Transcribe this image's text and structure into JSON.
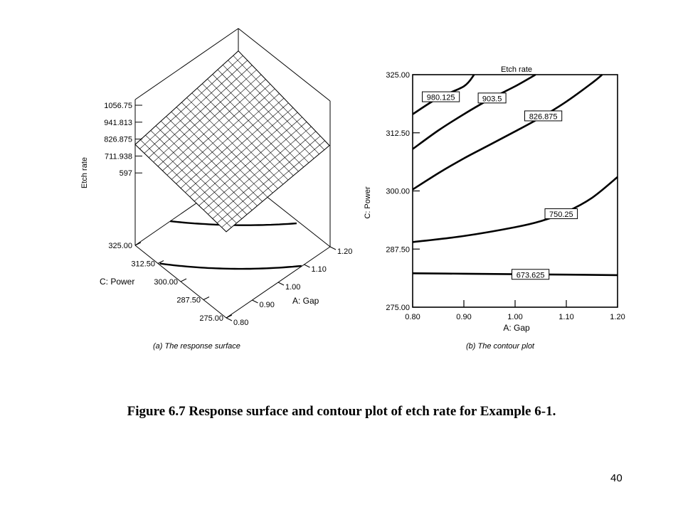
{
  "caption": "Figure 6.7  Response surface and contour plot of etch rate for Example 6-1.",
  "page_number": "40",
  "chart_data": [
    {
      "type": "surface",
      "sublabel": "(a) The response surface",
      "zlabel": "Etch rate",
      "z_ticks": [
        "1056.75",
        "941.813",
        "826.875",
        "711.938",
        "597"
      ],
      "z_range": [
        597,
        1056.75
      ],
      "xlabel": "A: Gap",
      "x_ticks": [
        "0.80",
        "0.90",
        "1.00",
        "1.10",
        "1.20"
      ],
      "x_range": [
        0.8,
        1.2
      ],
      "ylabel": "C: Power",
      "y_ticks": [
        "325.00",
        "312.50",
        "300.00",
        "287.50",
        "275.00"
      ],
      "y_range": [
        275,
        325
      ],
      "grid": true
    },
    {
      "type": "contour",
      "title": "Etch rate",
      "sublabel": "(b) The contour plot",
      "xlabel": "A: Gap",
      "ylabel": "C: Power",
      "x_ticks": [
        "0.80",
        "0.90",
        "1.00",
        "1.10",
        "1.20"
      ],
      "y_ticks": [
        "325.00",
        "312.50",
        "300.00",
        "287.50",
        "275.00"
      ],
      "xlim": [
        0.8,
        1.2
      ],
      "ylim": [
        275,
        325
      ],
      "contours": [
        {
          "level": "980.125",
          "points": [
            [
              0.8,
              316.5
            ],
            [
              0.85,
              320.0
            ],
            [
              0.9,
              322.5
            ],
            [
              0.92,
              325.0
            ]
          ]
        },
        {
          "level": "903.5",
          "points": [
            [
              0.8,
              309.0
            ],
            [
              0.85,
              313.0
            ],
            [
              0.9,
              316.5
            ],
            [
              0.95,
              319.7
            ],
            [
              1.0,
              322.5
            ],
            [
              1.04,
              325.0
            ]
          ]
        },
        {
          "level": "826.875",
          "points": [
            [
              0.8,
              300.3
            ],
            [
              0.85,
              303.8
            ],
            [
              0.9,
              307.0
            ],
            [
              0.95,
              309.9
            ],
            [
              1.0,
              312.8
            ],
            [
              1.05,
              315.8
            ],
            [
              1.1,
              319.2
            ],
            [
              1.15,
              323.2
            ],
            [
              1.17,
              325.0
            ]
          ]
        },
        {
          "level": "750.25",
          "points": [
            [
              0.8,
              289.0
            ],
            [
              0.9,
              290.3
            ],
            [
              1.0,
              292.2
            ],
            [
              1.05,
              293.5
            ],
            [
              1.1,
              295.5
            ],
            [
              1.15,
              298.5
            ],
            [
              1.2,
              303.0
            ]
          ]
        },
        {
          "level": "673.625",
          "points": [
            [
              0.8,
              282.3
            ],
            [
              0.9,
              282.2
            ],
            [
              1.0,
              282.1
            ],
            [
              1.1,
              282.0
            ],
            [
              1.2,
              281.9
            ]
          ]
        }
      ]
    }
  ]
}
